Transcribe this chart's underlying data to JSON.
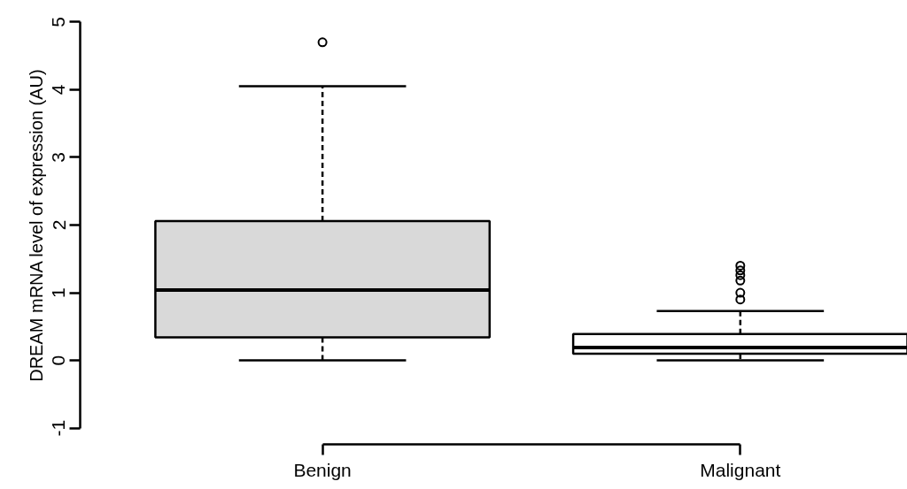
{
  "chart_data": {
    "type": "box",
    "ylabel": "DREAM mRNA level of expression (AU)",
    "categories": [
      "Benign",
      "Malignant"
    ],
    "boxes": [
      {
        "low": 0,
        "q1": 0.34,
        "median": 1.04,
        "q3": 2.06,
        "high": 4.05,
        "outliers": [
          4.7
        ]
      },
      {
        "low": 0,
        "q1": 0.1,
        "median": 0.19,
        "q3": 0.39,
        "high": 0.73,
        "outliers": [
          1.4,
          1.33,
          1.26,
          1.18,
          1.0,
          0.9
        ]
      }
    ],
    "colors": [
      "#d9d9d9",
      "#ffffff"
    ],
    "ylim": [
      -1,
      5
    ],
    "yticks": [
      -1,
      0,
      1,
      2,
      3,
      4,
      5
    ],
    "grid": false
  }
}
